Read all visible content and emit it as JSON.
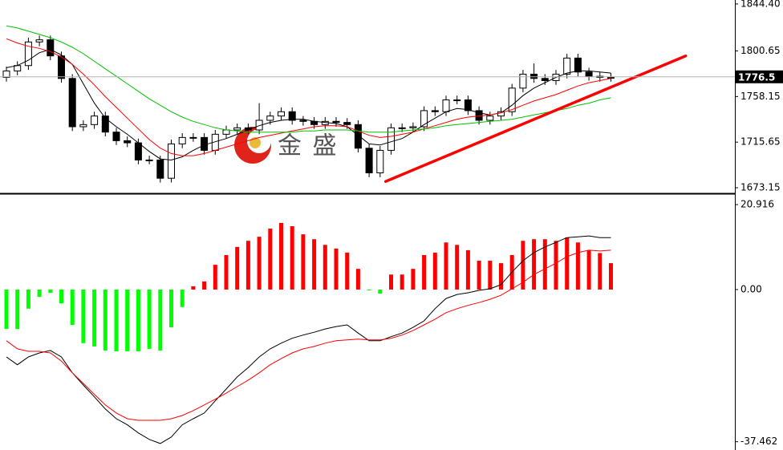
{
  "chart_data": [
    {
      "type": "candlestick",
      "categories": [
        null,
        null,
        null,
        null,
        null,
        null,
        null,
        null,
        null,
        null,
        null,
        null,
        null,
        null,
        null,
        null,
        null,
        null,
        null,
        null,
        null,
        null,
        null,
        null,
        null,
        null,
        null,
        null,
        null,
        null,
        null,
        null,
        null,
        null,
        null,
        null,
        null,
        null,
        null,
        null,
        null,
        null,
        null,
        null,
        null,
        null,
        null,
        null,
        null,
        null,
        null,
        null,
        null,
        null,
        null,
        null
      ],
      "open": [
        1776,
        1782,
        1787,
        1809,
        1811,
        1796,
        1775,
        1730,
        1732,
        1740,
        1725,
        1717,
        1715,
        1699,
        1699,
        1682,
        1714,
        1720,
        1720,
        1708,
        1723,
        1727,
        1729,
        1727,
        1736,
        1740,
        1744,
        1736,
        1735,
        1732,
        1735,
        1734,
        1732,
        1710,
        1687,
        1708,
        1729,
        1729,
        1730,
        1745,
        1744,
        1755,
        1755,
        1745,
        1736,
        1740,
        1744,
        1766,
        1779,
        1775,
        1773,
        1779,
        1794,
        1781,
        1777,
        1776
      ],
      "high": [
        1786,
        1791,
        1813,
        1815,
        1815,
        1800,
        1779,
        1736,
        1744,
        1744,
        1729,
        1721,
        1719,
        1703,
        1703,
        1718,
        1724,
        1724,
        1724,
        1727,
        1731,
        1733,
        1733,
        1752,
        1744,
        1748,
        1748,
        1740,
        1739,
        1739,
        1739,
        1738,
        1736,
        1714,
        1712,
        1733,
        1733,
        1734,
        1749,
        1749,
        1759,
        1759,
        1759,
        1749,
        1744,
        1748,
        1770,
        1783,
        1789,
        1779,
        1783,
        1798,
        1798,
        1785,
        1781,
        1780
      ],
      "low": [
        1772,
        1778,
        1783,
        1805,
        1792,
        1771,
        1726,
        1726,
        1728,
        1721,
        1713,
        1711,
        1695,
        1695,
        1678,
        1678,
        1710,
        1716,
        1704,
        1704,
        1719,
        1723,
        1723,
        1723,
        1732,
        1736,
        1732,
        1731,
        1728,
        1728,
        1730,
        1728,
        1706,
        1683,
        1683,
        1704,
        1725,
        1725,
        1726,
        1740,
        1740,
        1751,
        1741,
        1732,
        1732,
        1736,
        1740,
        1762,
        1771,
        1769,
        1769,
        1775,
        1777,
        1773,
        1772,
        1772
      ],
      "close": [
        1782,
        1787,
        1809,
        1811,
        1796,
        1775,
        1730,
        1732,
        1740,
        1725,
        1717,
        1715,
        1699,
        1699,
        1682,
        1714,
        1720,
        1720,
        1708,
        1723,
        1727,
        1729,
        1727,
        1736,
        1740,
        1744,
        1736,
        1735,
        1732,
        1735,
        1734,
        1732,
        1710,
        1687,
        1708,
        1729,
        1729,
        1730,
        1745,
        1744,
        1755,
        1755,
        1745,
        1736,
        1740,
        1744,
        1766,
        1779,
        1775,
        1773,
        1779,
        1794,
        1781,
        1777,
        1776,
        1776
      ],
      "up_color": "#ffffff",
      "down_color": "#000000",
      "series": [
        {
          "color": "#000000",
          "values": [
            1785,
            1787,
            1792,
            1799,
            1802,
            1797,
            1788,
            1770,
            1752,
            1738,
            1730,
            1723,
            1715,
            1707,
            1700,
            1699,
            1702,
            1708,
            1713,
            1716,
            1719,
            1723,
            1727,
            1731,
            1734,
            1736,
            1737,
            1737,
            1735,
            1734,
            1733,
            1730,
            1722,
            1714,
            1713,
            1716,
            1719,
            1725,
            1732,
            1738,
            1744,
            1747,
            1746,
            1743,
            1741,
            1743,
            1750,
            1759,
            1766,
            1771,
            1776,
            1780,
            1782,
            1782,
            1781,
            1780
          ]
        },
        {
          "color": "#ff0000",
          "values": [
            1812,
            1808,
            1805,
            1803,
            1800,
            1795,
            1788,
            1779,
            1769,
            1758,
            1748,
            1738,
            1728,
            1718,
            1710,
            1705,
            1703,
            1703,
            1705,
            1708,
            1711,
            1714,
            1717,
            1720,
            1722,
            1724,
            1726,
            1728,
            1730,
            1731,
            1731,
            1730,
            1726,
            1722,
            1720,
            1721,
            1723,
            1725,
            1728,
            1731,
            1734,
            1737,
            1739,
            1740,
            1741,
            1743,
            1746,
            1750,
            1754,
            1757,
            1760,
            1764,
            1768,
            1771,
            1773,
            1775
          ]
        },
        {
          "color": "#00c000",
          "values": [
            1824,
            1822,
            1819,
            1816,
            1813,
            1809,
            1804,
            1798,
            1791,
            1784,
            1777,
            1770,
            1763,
            1756,
            1750,
            1744,
            1739,
            1735,
            1732,
            1729,
            1727,
            1726,
            1725,
            1725,
            1725,
            1725,
            1725,
            1726,
            1726,
            1727,
            1727,
            1727,
            1726,
            1725,
            1725,
            1725,
            1726,
            1727,
            1728,
            1729,
            1731,
            1732,
            1733,
            1734,
            1735,
            1736,
            1737,
            1739,
            1741,
            1743,
            1745,
            1747,
            1750,
            1752,
            1755,
            1757
          ]
        }
      ],
      "trendline": {
        "x": [
          34.5,
          61.8
        ],
        "values": [
          1679,
          1796
        ],
        "color": "#ff0000"
      },
      "last_price": 1776.5,
      "watermark": "金 盛",
      "ylim": [
        1668.7,
        1848.1
      ],
      "yticks": [
        {
          "value": 1844.4,
          "label": "1844.40"
        },
        1800.65,
        1758.15,
        1715.65,
        1673.15
      ]
    },
    {
      "type": "macd",
      "categories": [
        null,
        null,
        null,
        null,
        null,
        null,
        null,
        null,
        null,
        null,
        null,
        null,
        null,
        null,
        null,
        null,
        null,
        null,
        null,
        null,
        null,
        null,
        null,
        null,
        null,
        null,
        null,
        null,
        null,
        null,
        null,
        null,
        null,
        null,
        null,
        null,
        null,
        null,
        null,
        null,
        null,
        null,
        null,
        null,
        null,
        null,
        null,
        null,
        null,
        null,
        null,
        null,
        null,
        null,
        null,
        null
      ],
      "values": [
        -9.7,
        -9.7,
        -4.7,
        -1.8,
        -0.8,
        -3.4,
        -8.7,
        -13.2,
        -14.0,
        -15.0,
        -15.2,
        -15.2,
        -15.2,
        -14.6,
        -15.0,
        -9.3,
        -4.3,
        0.8,
        2.0,
        6.1,
        8.5,
        10.5,
        12.0,
        13.0,
        15.0,
        16.4,
        15.6,
        13.6,
        12.4,
        11.0,
        10.1,
        9.1,
        5.1,
        -0.2,
        -1.0,
        3.7,
        3.7,
        5.1,
        8.5,
        9.1,
        11.6,
        11.0,
        9.7,
        7.1,
        7.1,
        6.5,
        8.5,
        12.0,
        12.4,
        12.4,
        12.0,
        12.8,
        11.6,
        9.7,
        9.0,
        6.5
      ],
      "pos_color": "#ff0000",
      "neg_color": "#00ff00",
      "series": [
        {
          "color": "#000000",
          "values": [
            -16.6,
            -18.5,
            -16.6,
            -15.6,
            -15.0,
            -16.6,
            -20.5,
            -23.5,
            -26.4,
            -29.4,
            -31.8,
            -33.3,
            -35.3,
            -36.9,
            -37.9,
            -36.3,
            -33.3,
            -31.8,
            -30.4,
            -27.4,
            -24.5,
            -21.5,
            -19.2,
            -16.6,
            -14.6,
            -13.2,
            -12.0,
            -11.2,
            -10.5,
            -9.7,
            -9.1,
            -8.7,
            -10.7,
            -12.6,
            -12.6,
            -11.6,
            -10.7,
            -9.3,
            -7.7,
            -4.7,
            -2.2,
            -1.2,
            -0.8,
            -0.2,
            0.2,
            1.2,
            4.3,
            7.1,
            9.1,
            10.5,
            11.6,
            12.8,
            13.0,
            13.2,
            12.8,
            12.8
          ]
        },
        {
          "color": "#ff0000",
          "values": [
            -12.6,
            -14.6,
            -15.2,
            -15.2,
            -15.6,
            -17.6,
            -20.5,
            -23.1,
            -25.8,
            -28.4,
            -30.4,
            -31.8,
            -32.2,
            -32.2,
            -32.2,
            -31.8,
            -31.0,
            -29.8,
            -28.4,
            -27.0,
            -25.5,
            -23.9,
            -22.3,
            -20.5,
            -18.5,
            -17.0,
            -15.6,
            -14.6,
            -14.0,
            -13.2,
            -12.6,
            -12.4,
            -12.2,
            -12.4,
            -12.4,
            -12.0,
            -11.2,
            -10.1,
            -8.7,
            -7.3,
            -5.7,
            -4.7,
            -3.9,
            -3.2,
            -2.4,
            -1.4,
            0.2,
            1.8,
            3.7,
            5.1,
            6.5,
            8.1,
            9.1,
            9.7,
            9.5,
            9.7
          ]
        }
      ],
      "ylim": [
        -39.5,
        23.3
      ],
      "yticks": [
        20.916,
        {
          "value": 0,
          "label": "0.00"
        },
        -37.462
      ]
    }
  ]
}
